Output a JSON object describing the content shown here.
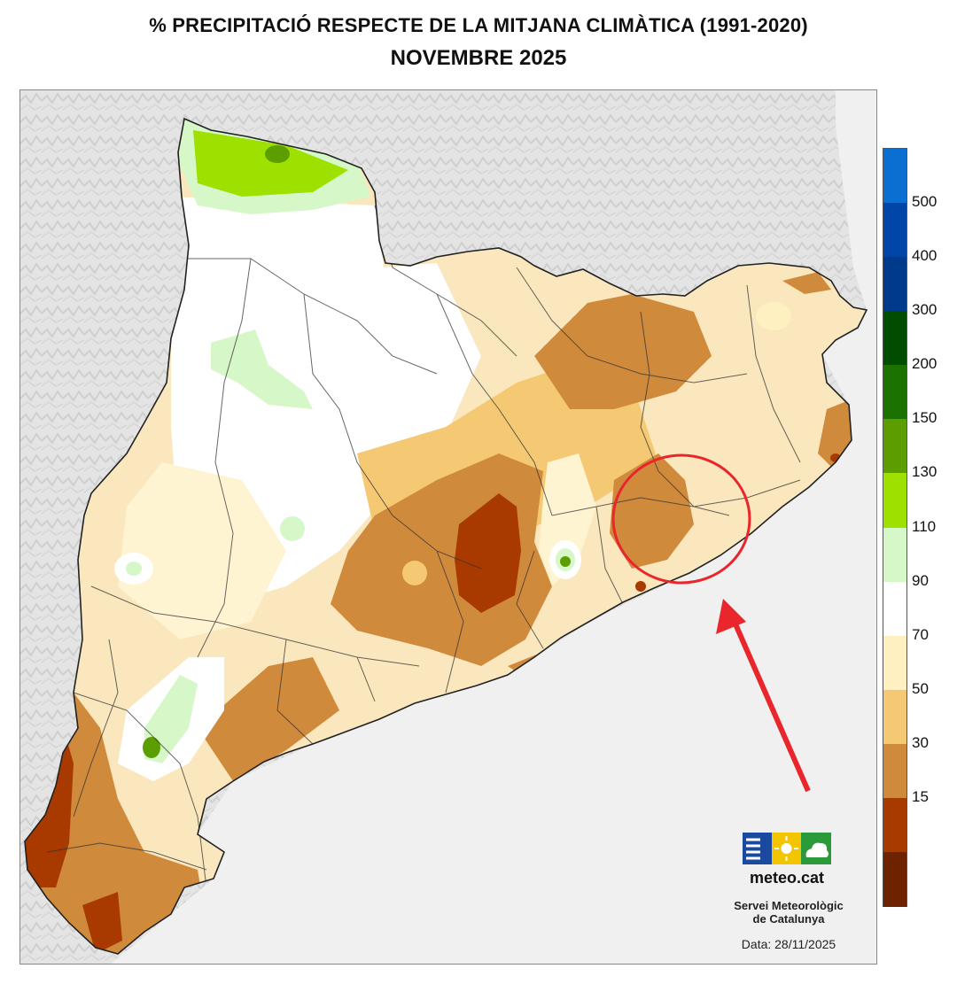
{
  "header": {
    "title": "% PRECIPITACIÓ RESPECTE DE LA MITJANA CLIMÀTICA (1991-2020)",
    "subtitle": "NOVEMBRE 2025"
  },
  "legend": {
    "labels": [
      "500",
      "400",
      "300",
      "200",
      "150",
      "130",
      "110",
      "90",
      "70",
      "50",
      "30",
      "15"
    ],
    "colors": [
      "#0a6fd0",
      "#0046a8",
      "#003a8c",
      "#004d00",
      "#1c7200",
      "#5c9e00",
      "#9ee000",
      "#d6f7c8",
      "#ffffff",
      "#fff0c2",
      "#f5c873",
      "#d08a3c",
      "#a83a00",
      "#6e2300"
    ]
  },
  "logo": {
    "brand": "meteo.cat",
    "org_line1": "Servei Meteorològic",
    "org_line2": "de Catalunya",
    "bar_colors": [
      "#1a4aa0",
      "#f2c500",
      "#2a9a3a"
    ]
  },
  "footer": {
    "date": "Data: 28/11/2025"
  },
  "annotation": {
    "color": "#e8262b"
  }
}
